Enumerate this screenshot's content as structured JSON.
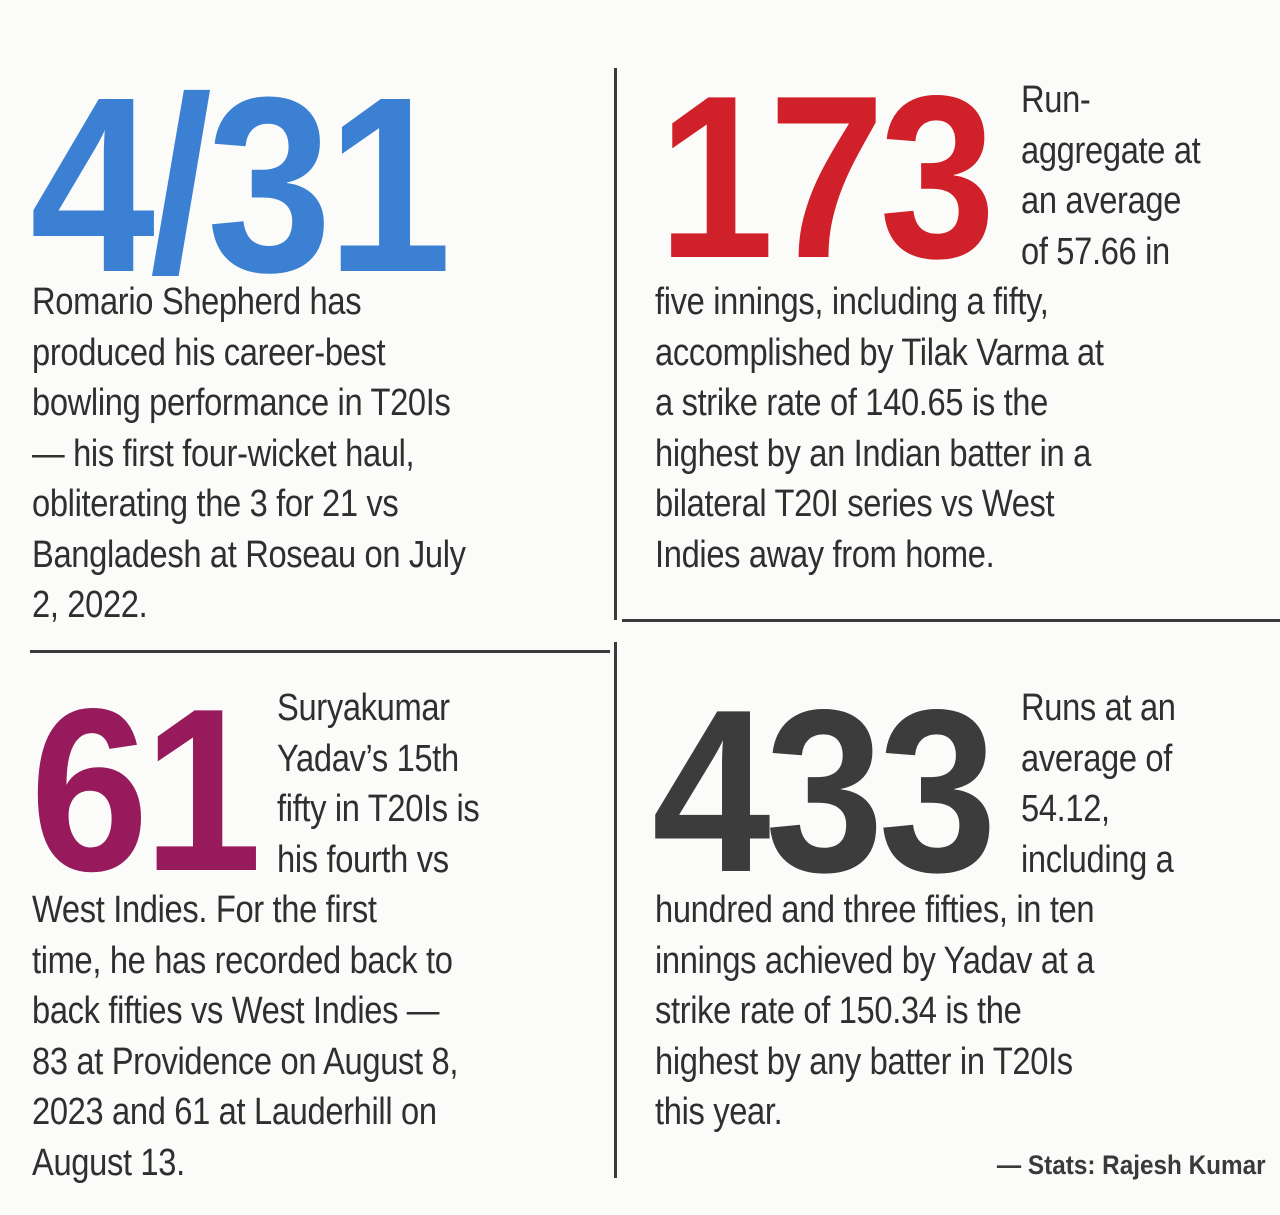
{
  "colors": {
    "stat1": "#3b80d2",
    "stat2": "#d0212b",
    "stat3": "#971a5d",
    "stat4": "#3c3c3c",
    "text": "#2f2f2f",
    "divider": "#3a3a3a"
  },
  "stat1": {
    "number": "4/31",
    "lines": [
      "Romario Shepherd has",
      "produced his career-best",
      "bowling performance in T20Is",
      "— his first four-wicket haul,",
      "obliterating the 3 for 21 vs",
      "Bangladesh at Roseau on July",
      "2, 2022."
    ]
  },
  "stat2": {
    "number": "173",
    "side_lines": [
      "Run-",
      "aggregate at",
      "an average",
      "of 57.66 in"
    ],
    "lines": [
      "five innings, including a fifty,",
      "accomplished by Tilak Varma at",
      "a strike rate of 140.65 is the",
      "highest by an Indian batter in a",
      "bilateral T20I series vs West",
      "Indies away from home."
    ]
  },
  "stat3": {
    "number": "61",
    "side_lines": [
      "Suryakumar",
      "Yadav’s 15th",
      "fifty in T20Is is",
      "his fourth vs"
    ],
    "lines": [
      "West Indies.  For the first",
      "time, he has recorded back to",
      "back fifties vs West Indies —",
      "83  at Providence on August 8,",
      "2023 and 61 at Lauderhill on",
      "August 13."
    ]
  },
  "stat4": {
    "number": "433",
    "side_lines": [
      "Runs at an",
      "average of",
      "54.12,",
      "including a"
    ],
    "lines": [
      "hundred and three fifties, in ten",
      "innings achieved by Yadav at a",
      "strike rate of 150.34 is the",
      "highest by any batter in T20Is",
      "this year."
    ]
  },
  "credit": "— Stats: Rajesh Kumar"
}
